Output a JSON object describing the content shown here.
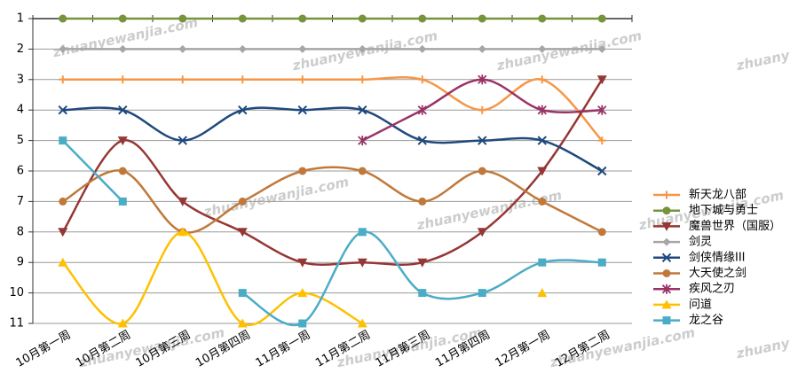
{
  "chart_data": {
    "type": "line",
    "categories": [
      "10月第一周",
      "10月第二周",
      "10月第三周",
      "10月第四周",
      "11月第一周",
      "11月第二周",
      "11月第三周",
      "11月第四周",
      "12月第一周",
      "12月第二周"
    ],
    "series": [
      {
        "name": "新天龙八部",
        "color": "#f79646",
        "marker": "plus",
        "values": [
          3,
          3,
          3,
          3,
          3,
          3,
          3,
          4,
          3,
          5
        ]
      },
      {
        "name": "地下城与勇士",
        "color": "#77933c",
        "marker": "circle",
        "values": [
          1,
          1,
          1,
          1,
          1,
          1,
          1,
          1,
          1,
          1
        ]
      },
      {
        "name": "魔兽世界（国服）",
        "color": "#953735",
        "marker": "triangle-down",
        "values": [
          8,
          5,
          7,
          8,
          9,
          9,
          9,
          8,
          6,
          3
        ]
      },
      {
        "name": "剑灵",
        "color": "#a6a6a6",
        "marker": "diamond",
        "values": [
          2,
          2,
          2,
          2,
          2,
          2,
          2,
          2,
          2,
          2
        ]
      },
      {
        "name": "剑侠情缘III",
        "color": "#1f497d",
        "marker": "x",
        "values": [
          4,
          4,
          5,
          4,
          4,
          4,
          5,
          5,
          5,
          6
        ]
      },
      {
        "name": "大天使之剑",
        "color": "#c0793b",
        "marker": "circle",
        "values": [
          7,
          6,
          8,
          7,
          6,
          6,
          7,
          6,
          7,
          8
        ]
      },
      {
        "name": "疾风之刃",
        "color": "#993366",
        "marker": "star",
        "values": [
          null,
          null,
          null,
          null,
          null,
          5,
          4,
          3,
          4,
          4
        ]
      },
      {
        "name": "问道",
        "color": "#ffc000",
        "marker": "triangle",
        "values": [
          9,
          11,
          8,
          11,
          10,
          11,
          null,
          null,
          10,
          null
        ]
      },
      {
        "name": "龙之谷",
        "color": "#4bacc6",
        "marker": "square",
        "values": [
          5,
          7,
          null,
          10,
          11,
          8,
          10,
          10,
          9,
          9
        ]
      }
    ],
    "ylim": [
      1,
      11
    ],
    "yticks": [
      1,
      2,
      3,
      4,
      5,
      6,
      7,
      8,
      9,
      10,
      11
    ],
    "y_reversed": true,
    "grid": true,
    "smooth": true,
    "legend": "right",
    "watermark": "zhuanyewanjia.com"
  }
}
